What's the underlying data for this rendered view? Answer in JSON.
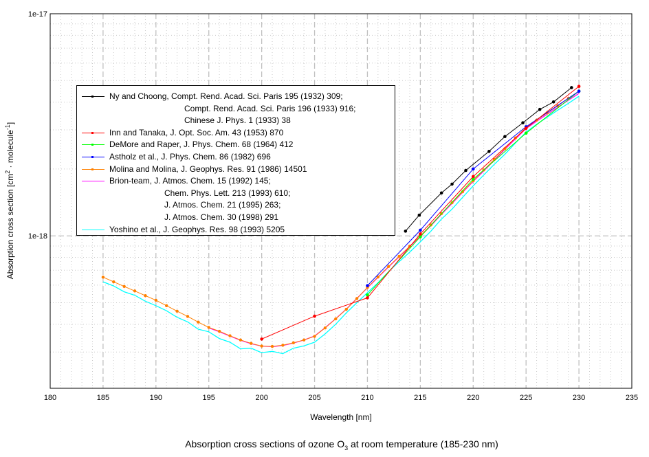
{
  "chart_data": {
    "type": "line",
    "title": "Absorption cross sections of ozone O3 at room temperature (185-230 nm)",
    "title_parts": {
      "pre": "Absorption cross sections of ozone O",
      "sub": "3",
      "post": " at room temperature (185-230 nm)"
    },
    "xlabel": "Wavelength [nm]",
    "ylabel": "Absorption cross section [cm2 · molecule-1]",
    "ylabel_parts": {
      "pre": "Absorption cross section [cm",
      "sup1": "2",
      "mid": " · molecule",
      "sup2": "-1",
      "post": "]"
    },
    "xlim": [
      180,
      235
    ],
    "ylim": [
      2.06e-19,
      1e-17
    ],
    "yscale": "log",
    "x_ticks": [
      "180",
      "185",
      "190",
      "195",
      "200",
      "205",
      "210",
      "215",
      "220",
      "225",
      "230",
      "235"
    ],
    "y_tick_labels": [
      "1e-17",
      "1e-18"
    ],
    "grid": true,
    "legend_position": "upper-left",
    "series": [
      {
        "name": "Ny and Choong",
        "color": "#000000",
        "markers": true,
        "legend": [
          "Ny and Choong, Compt. Rend. Acad. Sci. Paris 195 (1932) 309;",
          "Compt. Rend. Acad. Sci. Paris 196 (1933) 916;",
          "Chinese J. Phys. 1 (1933) 38"
        ],
        "x": [
          213.6,
          214.9,
          217.0,
          218.0,
          219.3,
          221.5,
          223.0,
          224.7,
          226.3,
          227.6,
          229.3
        ],
        "y": [
          1.05e-18,
          1.24e-18,
          1.56e-18,
          1.71e-18,
          1.97e-18,
          2.4e-18,
          2.8e-18,
          3.23e-18,
          3.71e-18,
          4.01e-18,
          4.65e-18
        ]
      },
      {
        "name": "Inn and Tanaka",
        "color": "#ff0000",
        "markers": true,
        "legend": [
          "Inn and Tanaka, J. Opt. Soc. Am. 43 (1953) 870"
        ],
        "x": [
          200,
          205,
          210,
          215,
          220,
          225,
          230
        ],
        "y": [
          3.43e-19,
          4.35e-19,
          5.26e-19,
          1.02e-18,
          1.85e-18,
          3.05e-18,
          4.71e-18
        ]
      },
      {
        "name": "DeMore and Raper",
        "color": "#00ff00",
        "markers": true,
        "legend": [
          "DeMore and Raper, J. Phys. Chem. 68 (1964) 412"
        ],
        "x": [
          210,
          215,
          220,
          225,
          230
        ],
        "y": [
          5.42e-19,
          9.9e-19,
          1.8e-18,
          2.9e-18,
          4.48e-18
        ]
      },
      {
        "name": "Astholz et al.",
        "color": "#0000ff",
        "markers": true,
        "legend": [
          "Astholz et al., J. Phys. Chem. 86 (1982) 696"
        ],
        "x": [
          210,
          215,
          220,
          225,
          230
        ],
        "y": [
          5.97e-19,
          1.06e-18,
          2e-18,
          3.1e-18,
          4.48e-18
        ]
      },
      {
        "name": "Molina and Molina",
        "color": "#ff8000",
        "markers": true,
        "legend": [
          "Molina and Molina, J. Geophys. Res. 91 (1986) 14501"
        ],
        "x": [
          185,
          186,
          187,
          188,
          189,
          190,
          191,
          192,
          193,
          194,
          195,
          196,
          197,
          198,
          199,
          200,
          201,
          202,
          203,
          204,
          205,
          206,
          207,
          208,
          209,
          210,
          211,
          212,
          213,
          214,
          215,
          216,
          217,
          218,
          219,
          220,
          221,
          222,
          223,
          224,
          225,
          226,
          227,
          228,
          229,
          230
        ],
        "y": [
          6.52e-19,
          6.21e-19,
          5.92e-19,
          5.65e-19,
          5.38e-19,
          5.13e-19,
          4.85e-19,
          4.58e-19,
          4.34e-19,
          4.09e-19,
          3.87e-19,
          3.72e-19,
          3.55e-19,
          3.4e-19,
          3.28e-19,
          3.19e-19,
          3.18e-19,
          3.22e-19,
          3.3e-19,
          3.4e-19,
          3.53e-19,
          3.85e-19,
          4.23e-19,
          4.67e-19,
          5.22e-19,
          5.86e-19,
          6.53e-19,
          7.28e-19,
          8.09e-19,
          8.99e-19,
          1e-18,
          1.12e-18,
          1.26e-18,
          1.41e-18,
          1.58e-18,
          1.77e-18,
          1.98e-18,
          2.21e-18,
          2.47e-18,
          2.76e-18,
          3.08e-18,
          3.32e-18,
          3.58e-18,
          3.85e-18,
          4.16e-18,
          4.48e-18
        ]
      },
      {
        "name": "Brion-team",
        "color": "#ff00ff",
        "markers": false,
        "legend": [
          "Brion-team, J. Atmos. Chem. 15 (1992) 145;",
          "Chem. Phys. Lett. 213 (1993) 610;",
          "J. Atmos. Chem. 21 (1995) 263;",
          "J. Atmos. Chem. 30 (1998) 291"
        ],
        "x": [
          195,
          196,
          197,
          198,
          199,
          200,
          201,
          202,
          203,
          204,
          205,
          206,
          207,
          208,
          209,
          210,
          211,
          212,
          213,
          214,
          215,
          216,
          217,
          218,
          219,
          220,
          221,
          222,
          223,
          224,
          225,
          226,
          227,
          228,
          229,
          230
        ],
        "y": [
          3.85e-19,
          3.7e-19,
          3.54e-19,
          3.39e-19,
          3.27e-19,
          3.19e-19,
          3.17e-19,
          3.21e-19,
          3.29e-19,
          3.4e-19,
          3.54e-19,
          3.86e-19,
          4.24e-19,
          4.68e-19,
          5.23e-19,
          5.84e-19,
          6.5e-19,
          7.25e-19,
          8.05e-19,
          8.95e-19,
          9.95e-19,
          1.11e-18,
          1.25e-18,
          1.4e-18,
          1.57e-18,
          1.76e-18,
          1.96e-18,
          2.19e-18,
          2.45e-18,
          2.73e-18,
          3.04e-18,
          3.28e-18,
          3.53e-18,
          3.79e-18,
          4.08e-18,
          4.38e-18
        ]
      },
      {
        "name": "Yoshino et al.",
        "color": "#00ffff",
        "markers": false,
        "legend": [
          "Yoshino et al., J. Geophys. Res. 98 (1993) 5205"
        ],
        "x": [
          185,
          186,
          187,
          188,
          189,
          190,
          191,
          192,
          193,
          194,
          195,
          196,
          197,
          198,
          199,
          200,
          201,
          202,
          203,
          204,
          205,
          206,
          207,
          208,
          209,
          210,
          211,
          212,
          213,
          214,
          215,
          216,
          217,
          218,
          219,
          220,
          221,
          222,
          223,
          224,
          225,
          226,
          227,
          228,
          229,
          230
        ],
        "y": [
          6.21e-19,
          5.95e-19,
          5.6e-19,
          5.4e-19,
          5.08e-19,
          4.85e-19,
          4.6e-19,
          4.3e-19,
          4.1e-19,
          3.8e-19,
          3.7e-19,
          3.45e-19,
          3.32e-19,
          3.1e-19,
          3.12e-19,
          2.98e-19,
          3.02e-19,
          2.95e-19,
          3.12e-19,
          3.2e-19,
          3.32e-19,
          3.62e-19,
          4e-19,
          4.5e-19,
          5e-19,
          5.55e-19,
          6.15e-19,
          6.9e-19,
          7.65e-19,
          8.45e-19,
          9.4e-19,
          1.05e-18,
          1.19e-18,
          1.32e-18,
          1.49e-18,
          1.68e-18,
          1.88e-18,
          2.1e-18,
          2.33e-18,
          2.62e-18,
          2.93e-18,
          3.18e-18,
          3.42e-18,
          3.68e-18,
          3.95e-18,
          4.25e-18
        ]
      }
    ]
  }
}
